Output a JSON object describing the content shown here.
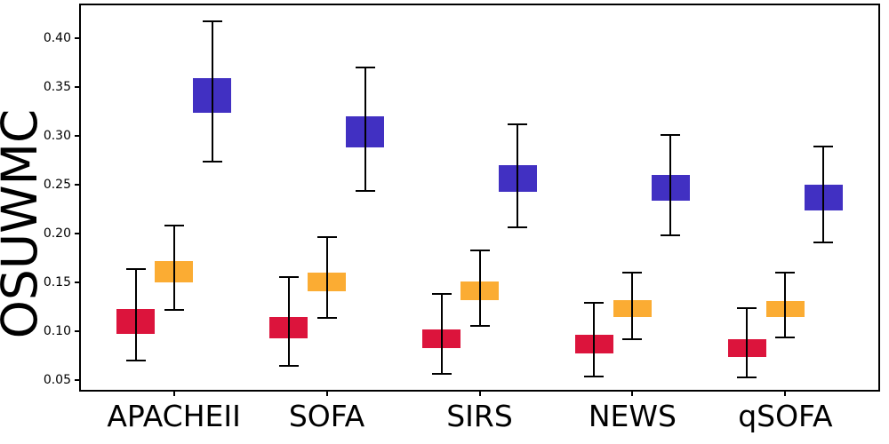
{
  "figure": {
    "background": "#ffffff",
    "axis_color": "#000000"
  },
  "chart_data": {
    "type": "errorbar",
    "title": "",
    "xlabel": "",
    "ylabel": "OSUWMC",
    "legend": "none",
    "grid": false,
    "categories": [
      "APACHEII",
      "SOFA",
      "SIRS",
      "NEWS",
      "qSOFA"
    ],
    "yticks": [
      0.05,
      0.1,
      0.15,
      0.2,
      0.25,
      0.3,
      0.35,
      0.4
    ],
    "ylim": [
      0.0385,
      0.4355
    ],
    "series": [
      {
        "name": "crimson-series",
        "color": "#DC143C",
        "box_low": [
          0.098,
          0.093,
          0.083,
          0.078,
          0.074
        ],
        "box_high": [
          0.123,
          0.115,
          0.102,
          0.097,
          0.092
        ],
        "whisker_low": [
          0.07,
          0.065,
          0.057,
          0.054,
          0.053
        ],
        "whisker_high": [
          0.164,
          0.156,
          0.138,
          0.129,
          0.124
        ]
      },
      {
        "name": "orange-series",
        "color": "#FBAC33",
        "box_low": [
          0.15,
          0.141,
          0.132,
          0.115,
          0.115
        ],
        "box_high": [
          0.172,
          0.16,
          0.151,
          0.132,
          0.131
        ],
        "whisker_low": [
          0.122,
          0.114,
          0.106,
          0.092,
          0.094
        ],
        "whisker_high": [
          0.208,
          0.197,
          0.183,
          0.16,
          0.16
        ]
      },
      {
        "name": "blue-series",
        "color": "#4130C2",
        "box_low": [
          0.324,
          0.288,
          0.243,
          0.234,
          0.224
        ],
        "box_high": [
          0.359,
          0.32,
          0.27,
          0.26,
          0.25
        ],
        "whisker_low": [
          0.274,
          0.244,
          0.207,
          0.198,
          0.191
        ],
        "whisker_high": [
          0.417,
          0.37,
          0.312,
          0.301,
          0.289
        ]
      }
    ]
  }
}
